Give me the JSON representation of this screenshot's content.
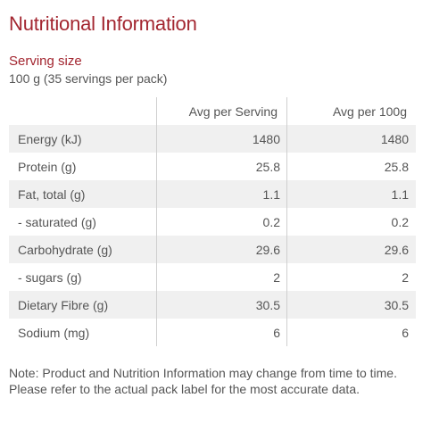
{
  "title": "Nutritional Information",
  "serving": {
    "heading": "Serving size",
    "value": "100 g (35 servings per pack)"
  },
  "table": {
    "headers": [
      "",
      "Avg per Serving",
      "Avg per 100g"
    ],
    "rows": [
      {
        "label": "Energy (kJ)",
        "per_serving": "1480",
        "per_100g": "1480"
      },
      {
        "label": "Protein (g)",
        "per_serving": "25.8",
        "per_100g": "25.8"
      },
      {
        "label": "Fat, total (g)",
        "per_serving": "1.1",
        "per_100g": "1.1"
      },
      {
        "label": "- saturated (g)",
        "per_serving": "0.2",
        "per_100g": "0.2"
      },
      {
        "label": "Carbohydrate (g)",
        "per_serving": "29.6",
        "per_100g": "29.6"
      },
      {
        "label": "- sugars (g)",
        "per_serving": "2",
        "per_100g": "2"
      },
      {
        "label": "Dietary Fibre (g)",
        "per_serving": "30.5",
        "per_100g": "30.5"
      },
      {
        "label": "Sodium (mg)",
        "per_serving": "6",
        "per_100g": "6"
      }
    ]
  },
  "note": "Note: Product and Nutrition Information may change from time to time. Please refer to the actual pack label for the most accurate data.",
  "colors": {
    "accent": "#a32630",
    "text": "#555555",
    "row_shade": "#f0f0f0",
    "divider": "#cfcfcf"
  }
}
